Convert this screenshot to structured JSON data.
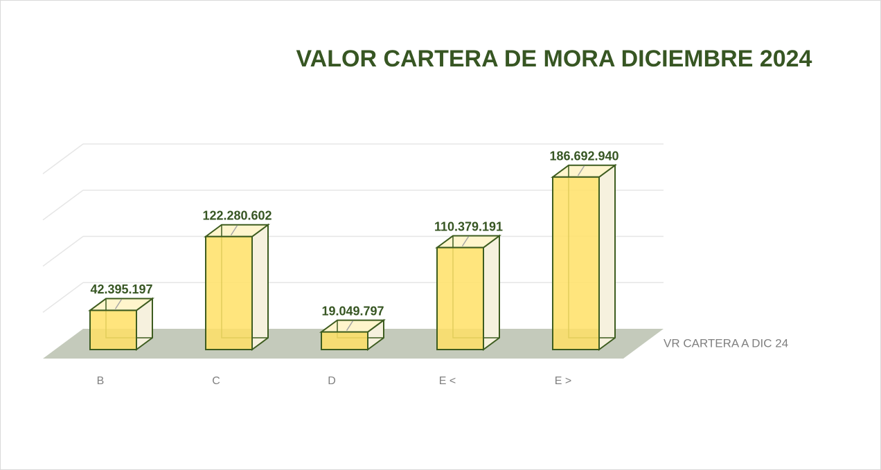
{
  "chart_data": {
    "type": "bar3d",
    "title": "VALOR CARTERA DE MORA DICIEMBRE 2024",
    "categories": [
      "B",
      "C",
      "D",
      "E <",
      "E >"
    ],
    "series": [
      {
        "name": "VR CARTERA A DIC 24",
        "color": "#ffe066",
        "values": [
          42395197,
          122280602,
          19049797,
          110379191,
          186692940
        ],
        "value_labels": [
          "42.395.197",
          "122.280.602",
          "19.049.797",
          "110.379.191",
          "186.692.940"
        ]
      }
    ],
    "ylim": [
      0,
      200000000
    ],
    "yticks": [
      0,
      50000000,
      100000000,
      150000000,
      200000000
    ],
    "grid": true
  }
}
